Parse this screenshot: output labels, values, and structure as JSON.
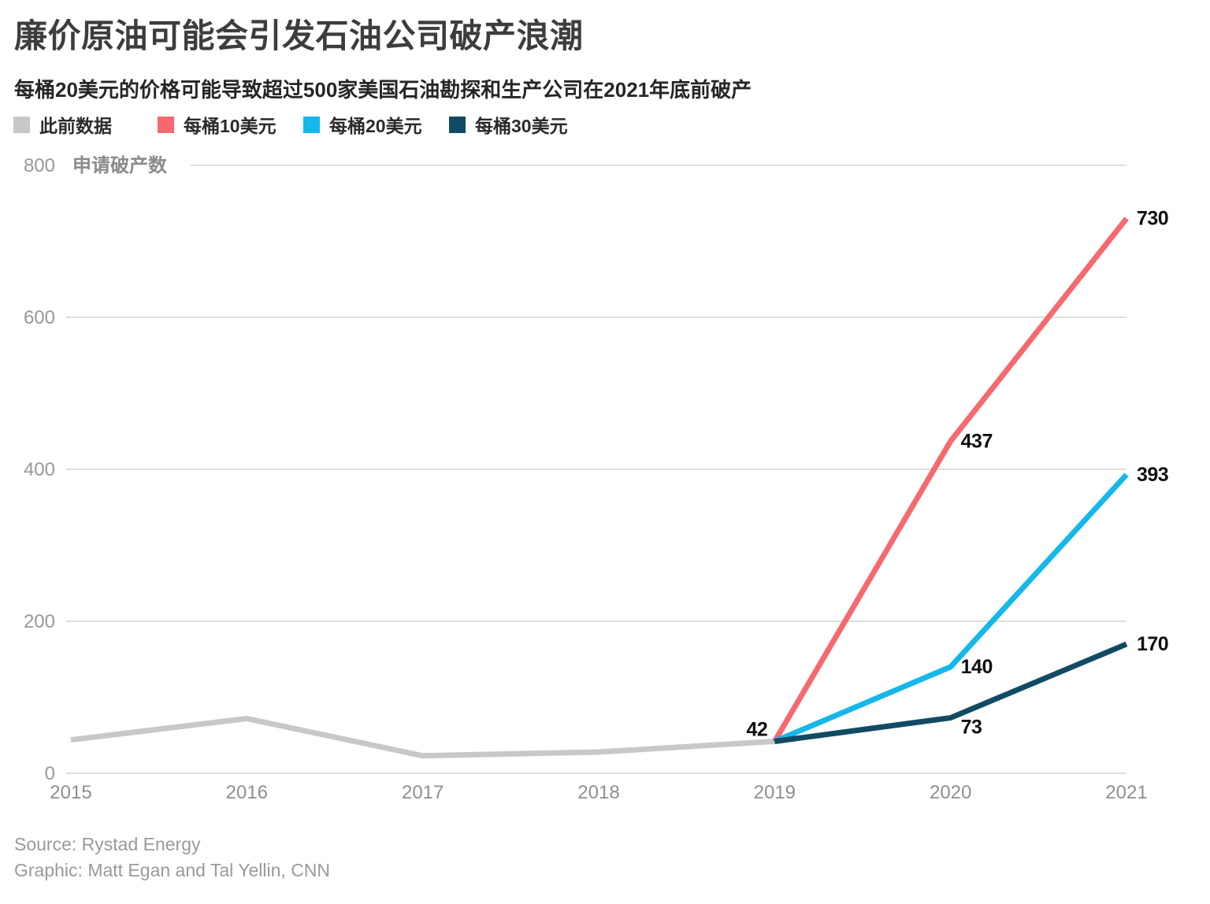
{
  "header": {
    "title": "廉价原油可能会引发石油公司破产浪潮",
    "subtitle": "每桶20美元的价格可能导致超过500家美国石油勘探和生产公司在2021年底前破产"
  },
  "legend": {
    "items": [
      {
        "label": "此前数据",
        "color": "#c8c8c8"
      },
      {
        "label": "每桶10美元",
        "color": "#f8686f"
      },
      {
        "label": "每桶20美元",
        "color": "#15b8ea"
      },
      {
        "label": "每桶30美元",
        "color": "#114b63"
      }
    ]
  },
  "chart_data": {
    "type": "line",
    "title": "廉价原油可能会引发石油公司破产浪潮",
    "subtitle": "每桶20美元的价格可能导致超过500家美国石油勘探和生产公司在2021年底前破产",
    "ylabel": "申请破产数",
    "xlabel": "",
    "ylim": [
      0,
      800
    ],
    "yticks": [
      0,
      200,
      400,
      600,
      800
    ],
    "xticks": [
      "2015",
      "2016",
      "2017",
      "2018",
      "2019",
      "2020",
      "2021"
    ],
    "grid": true,
    "legend_position": "top",
    "series": [
      {
        "name": "此前数据",
        "color": "#c8c8c8",
        "x": [
          2015,
          2016,
          2017,
          2018,
          2019
        ],
        "values": [
          44,
          72,
          23,
          28,
          42
        ]
      },
      {
        "name": "每桶10美元",
        "color": "#f8686f",
        "x": [
          2019,
          2020,
          2021
        ],
        "values": [
          42,
          437,
          730
        ]
      },
      {
        "name": "每桶20美元",
        "color": "#15b8ea",
        "x": [
          2019,
          2020,
          2021
        ],
        "values": [
          42,
          140,
          393
        ]
      },
      {
        "name": "每桶30美元",
        "color": "#114b63",
        "x": [
          2019,
          2020,
          2021
        ],
        "values": [
          42,
          73,
          170
        ]
      }
    ],
    "annotated_values": [
      42,
      437,
      730,
      140,
      393,
      73,
      170
    ]
  },
  "footer": {
    "source": "Source: Rystad Energy",
    "credit": "Graphic: Matt Egan and Tal Yellin, CNN"
  }
}
